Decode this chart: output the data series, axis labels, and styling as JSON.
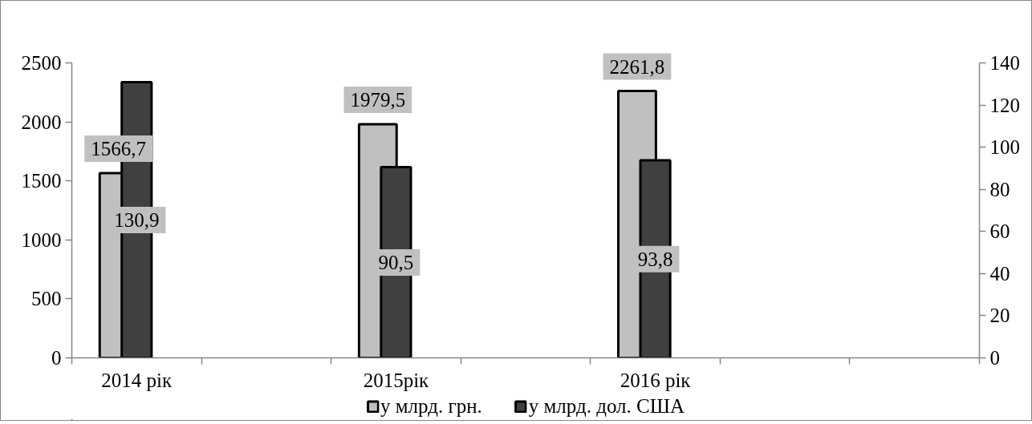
{
  "chart_data": {
    "type": "bar",
    "categories": [
      "2014 рік",
      null,
      "2015рік",
      null,
      "2016 рік",
      null,
      null
    ],
    "series": [
      {
        "name": "у млрд. грн.",
        "color": "#c0c0c0",
        "values": [
          1566.7,
          null,
          1979.5,
          null,
          2261.8,
          null,
          null
        ],
        "value_labels": [
          "1566,7",
          null,
          "1979,5",
          null,
          "2261,8",
          null,
          null
        ]
      },
      {
        "name": "у млрд. дол. США",
        "color": "#404040",
        "axis": "y2",
        "values": [
          130.9,
          null,
          90.5,
          null,
          93.8,
          null,
          null
        ],
        "value_labels": [
          "130,9",
          null,
          "90,5",
          null,
          "93,8",
          null,
          null
        ]
      }
    ],
    "ylim": [
      0,
      2500
    ],
    "yticks": [
      0,
      500,
      1000,
      1500,
      2000,
      2500
    ],
    "y2lim": [
      0,
      140
    ],
    "y2ticks": [
      0,
      20,
      40,
      60,
      80,
      100,
      120,
      140
    ],
    "legend": "bottom",
    "grid": false
  }
}
